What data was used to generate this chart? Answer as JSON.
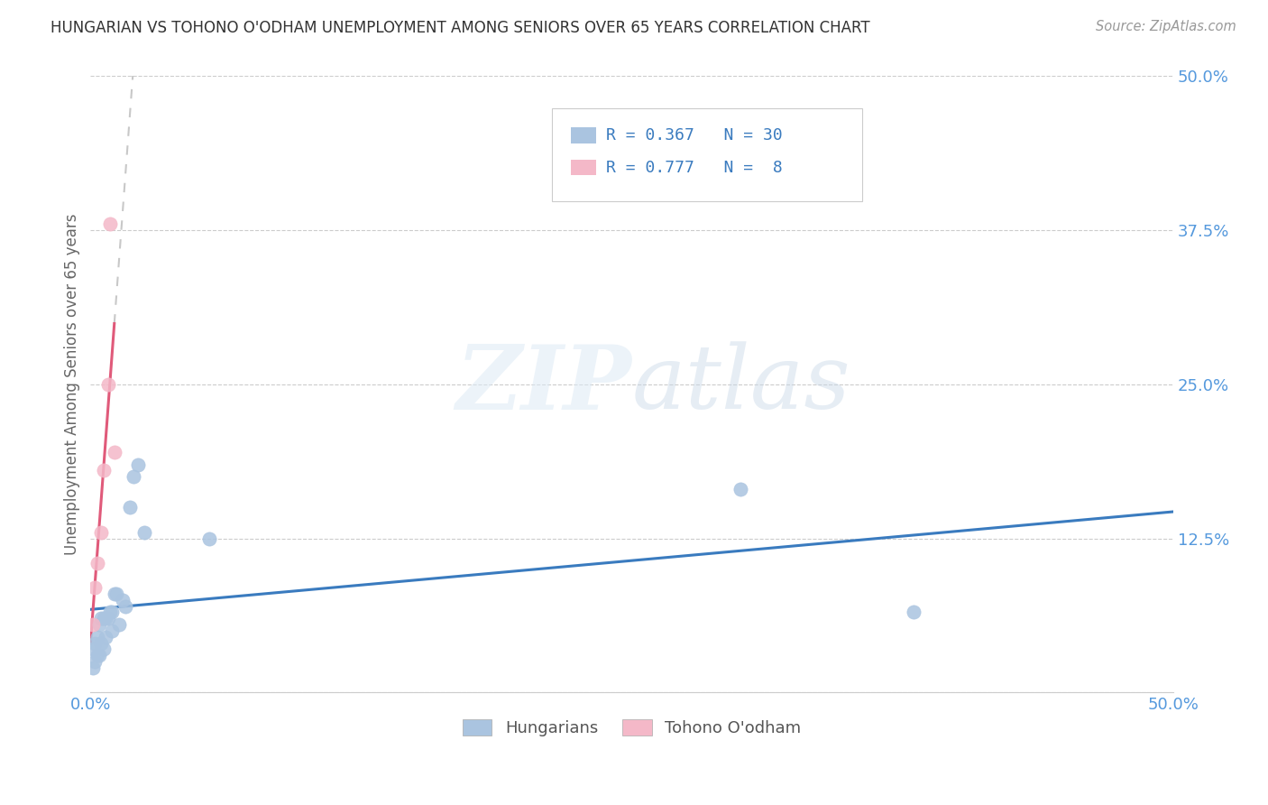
{
  "title": "HUNGARIAN VS TOHONO O'ODHAM UNEMPLOYMENT AMONG SENIORS OVER 65 YEARS CORRELATION CHART",
  "source": "Source: ZipAtlas.com",
  "ylabel": "Unemployment Among Seniors over 65 years",
  "legend_labels": [
    "Hungarians",
    "Tohono O'odham"
  ],
  "hungarian_R": "0.367",
  "hungarian_N": "30",
  "tohono_R": "0.777",
  "tohono_N": " 8",
  "hungarian_color": "#aac4e0",
  "tohono_color": "#f4b8c8",
  "trend_hungarian_color": "#3a7bbf",
  "trend_tohono_color": "#e05a7a",
  "trend_tohono_dash_color": "#c8c8c8",
  "watermark_zip": "ZIP",
  "watermark_atlas": "atlas",
  "background_color": "#ffffff",
  "xlim": [
    0.0,
    0.5
  ],
  "ylim": [
    0.0,
    0.5
  ],
  "yticks": [
    0.0,
    0.125,
    0.25,
    0.375,
    0.5
  ],
  "ytick_labels": [
    "",
    "12.5%",
    "25.0%",
    "37.5%",
    "50.0%"
  ],
  "xtick_labels_show": [
    "0.0%",
    "50.0%"
  ],
  "hungarian_x": [
    0.001,
    0.001,
    0.002,
    0.002,
    0.003,
    0.003,
    0.004,
    0.004,
    0.005,
    0.005,
    0.006,
    0.006,
    0.007,
    0.007,
    0.008,
    0.009,
    0.01,
    0.01,
    0.011,
    0.012,
    0.013,
    0.015,
    0.016,
    0.018,
    0.02,
    0.022,
    0.025,
    0.055,
    0.3,
    0.38
  ],
  "hungarian_y": [
    0.02,
    0.035,
    0.025,
    0.04,
    0.03,
    0.045,
    0.03,
    0.055,
    0.04,
    0.06,
    0.035,
    0.06,
    0.045,
    0.06,
    0.06,
    0.065,
    0.05,
    0.065,
    0.08,
    0.08,
    0.055,
    0.075,
    0.07,
    0.15,
    0.175,
    0.185,
    0.13,
    0.125,
    0.165,
    0.065
  ],
  "tohono_x": [
    0.001,
    0.002,
    0.003,
    0.005,
    0.006,
    0.008,
    0.009,
    0.011
  ],
  "tohono_y": [
    0.055,
    0.085,
    0.105,
    0.13,
    0.18,
    0.25,
    0.38,
    0.195
  ]
}
